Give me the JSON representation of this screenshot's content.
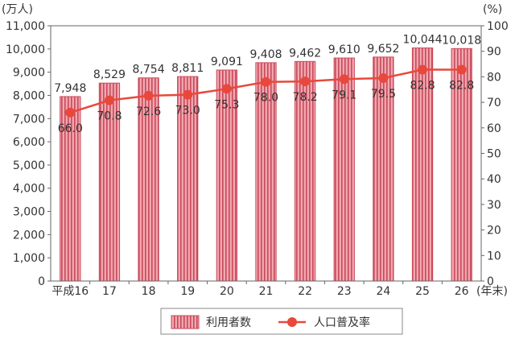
{
  "chart_data": {
    "type": "bar+line",
    "categories": [
      "平成16",
      "17",
      "18",
      "19",
      "20",
      "21",
      "22",
      "23",
      "24",
      "25",
      "26"
    ],
    "category_suffix": "(年末)",
    "series": [
      {
        "name": "利用者数",
        "type": "bar",
        "axis": "left",
        "values": [
          7948,
          8529,
          8754,
          8811,
          9091,
          9408,
          9462,
          9610,
          9652,
          10044,
          10018
        ],
        "value_labels": [
          "7,948",
          "8,529",
          "8,754",
          "8,811",
          "9,091",
          "9,408",
          "9,462",
          "9,610",
          "9,652",
          "10,044",
          "10,018"
        ],
        "color": "#f2a7b0",
        "stroke": "#c84a5a"
      },
      {
        "name": "人口普及率",
        "type": "line",
        "axis": "right",
        "values": [
          66.0,
          70.8,
          72.6,
          73.0,
          75.3,
          78.0,
          78.2,
          79.1,
          79.5,
          82.8,
          82.8
        ],
        "value_labels": [
          "66.0",
          "70.8",
          "72.6",
          "73.0",
          "75.3",
          "78.0",
          "78.2",
          "79.1",
          "79.5",
          "82.8",
          "82.8"
        ],
        "color": "#e8483b"
      }
    ],
    "left_axis": {
      "unit": "(万人)",
      "ylim": [
        0,
        11000
      ],
      "ticks": [
        0,
        1000,
        2000,
        3000,
        4000,
        5000,
        6000,
        7000,
        8000,
        9000,
        10000,
        11000
      ],
      "tick_labels": [
        "0",
        "1,000",
        "2,000",
        "3,000",
        "4,000",
        "5,000",
        "6,000",
        "7,000",
        "8,000",
        "9,000",
        "10,000",
        "11,000"
      ]
    },
    "right_axis": {
      "unit": "(%)",
      "ylim": [
        0,
        100
      ],
      "ticks": [
        0,
        10,
        20,
        30,
        40,
        50,
        60,
        70,
        80,
        90,
        100
      ],
      "tick_labels": [
        "0",
        "10",
        "20",
        "30",
        "40",
        "50",
        "60",
        "70",
        "80",
        "90",
        "100"
      ]
    },
    "grid": false,
    "legend_position": "bottom"
  }
}
